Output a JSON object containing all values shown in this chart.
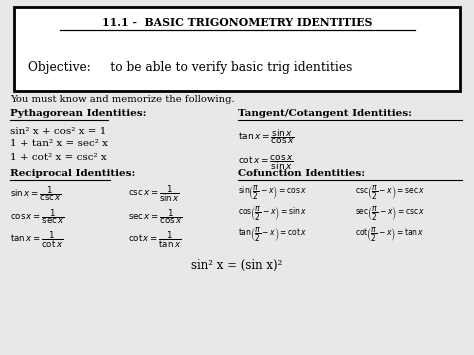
{
  "bg_color": "#f0f0f0",
  "title_box_text": "11.1 -  BASIC TRIGONOMETRY IDENTITIES",
  "objective_text": "Objective:     to be able to verify basic trig identities",
  "intro_text": "You must know and memorize the following.",
  "pyth_header": "Pythagorean Identities:",
  "pyth_lines": [
    "sin² x + cos² x = 1",
    "1 + tan² x = sec² x",
    "1 + cot² x = csc² x"
  ],
  "recip_header": "Reciprocal Identities:",
  "tan_header": "Tangent/Cotangent Identities:",
  "cofunc_header": "Cofunction Identities:",
  "bottom_note": "sin² x = (sin x)²"
}
